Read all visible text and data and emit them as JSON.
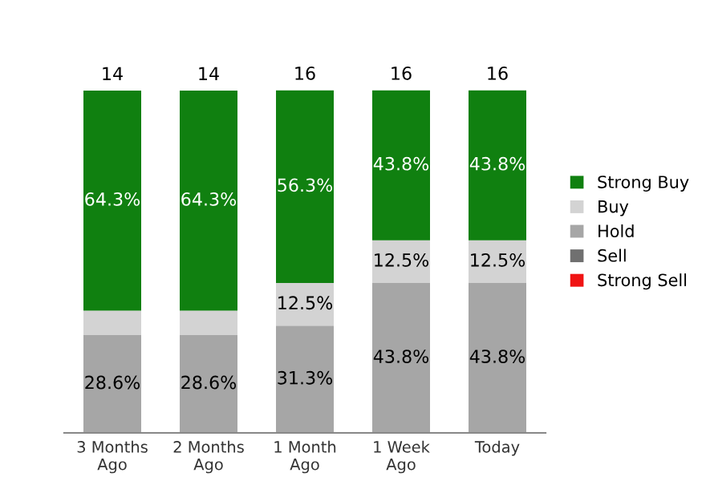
{
  "chart_data": {
    "type": "bar",
    "stacked": true,
    "categories": [
      "3 Months\nAgo",
      "2 Months\nAgo",
      "1 Month\nAgo",
      "1 Week\nAgo",
      "Today"
    ],
    "series": [
      {
        "name": "Strong Sell",
        "color": "#f01414",
        "values": [
          0,
          0,
          0,
          0,
          0
        ],
        "value_labels": [
          null,
          null,
          null,
          null,
          null
        ]
      },
      {
        "name": "Sell",
        "color": "#707070",
        "values": [
          0,
          0,
          0,
          0,
          0
        ],
        "value_labels": [
          null,
          null,
          null,
          null,
          null
        ]
      },
      {
        "name": "Hold",
        "color": "#a6a6a6",
        "values": [
          28.6,
          28.6,
          31.3,
          43.8,
          43.8
        ],
        "value_labels": [
          "28.6%",
          "28.6%",
          "31.3%",
          "43.8%",
          "43.8%"
        ]
      },
      {
        "name": "Buy",
        "color": "#d3d3d3",
        "values": [
          7.1,
          7.1,
          12.5,
          12.5,
          12.5
        ],
        "value_labels": [
          null,
          null,
          "12.5%",
          "12.5%",
          "12.5%"
        ]
      },
      {
        "name": "Strong Buy",
        "color": "#108010",
        "values": [
          64.3,
          64.3,
          56.3,
          43.8,
          43.8
        ],
        "value_labels": [
          "64.3%",
          "64.3%",
          "56.3%",
          "43.8%",
          "43.8%"
        ]
      }
    ],
    "annotations": [
      "14",
      "14",
      "16",
      "16",
      "16"
    ],
    "tick_labels": "x",
    "grid": false,
    "legend": "right"
  }
}
